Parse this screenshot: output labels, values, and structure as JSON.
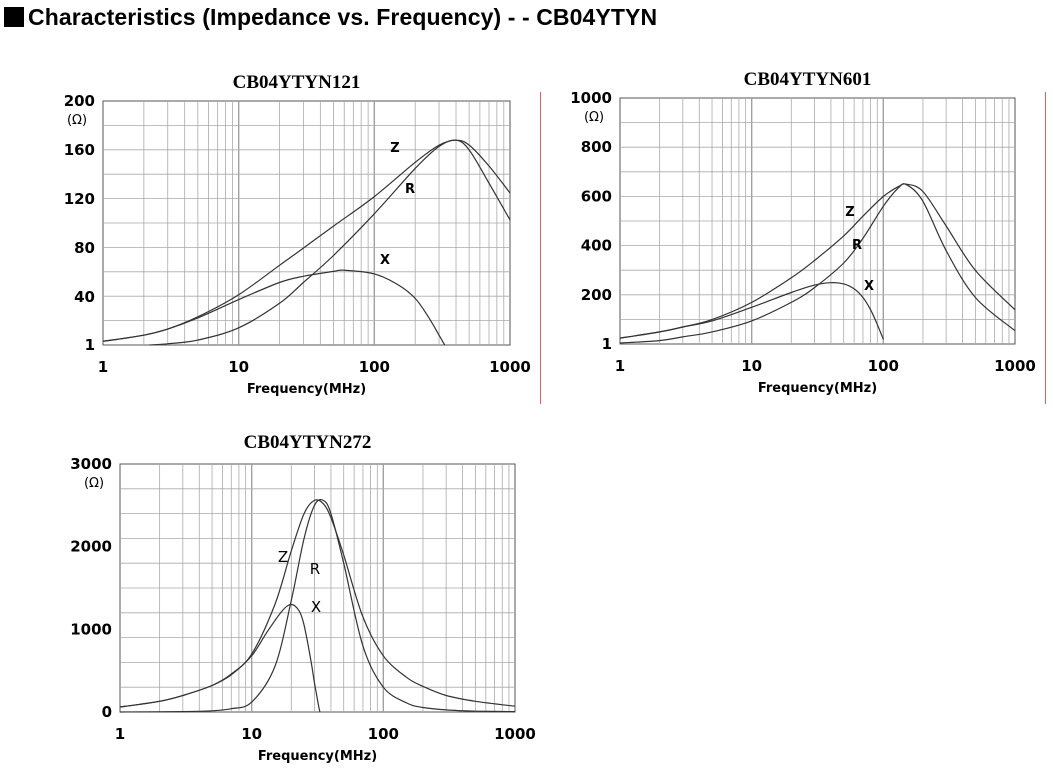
{
  "page": {
    "title": "Characteristics (Impedance vs. Frequency) - - CB04YTYN"
  },
  "chart_data": [
    {
      "type": "line",
      "title": "CB04YTYN121",
      "xlabel": "Frequency(MHz)",
      "ylabel": "",
      "yunit": "(Ω)",
      "xscale": "log",
      "xlim": [
        1,
        1000
      ],
      "ylim": [
        1,
        200
      ],
      "xticks": [
        "1",
        "10",
        "100",
        "1000"
      ],
      "yticks": [
        1,
        40,
        80,
        120,
        160,
        200
      ],
      "grid": true,
      "series": [
        {
          "name": "Z",
          "x": [
            1,
            2,
            3,
            5,
            10,
            20,
            30,
            50,
            100,
            200,
            300,
            400,
            500,
            700,
            1000
          ],
          "y": [
            4,
            9,
            14,
            24,
            42,
            66,
            80,
            98,
            122,
            150,
            164,
            168,
            164,
            147,
            125
          ]
        },
        {
          "name": "R",
          "x": [
            2.2,
            3,
            5,
            10,
            20,
            30,
            50,
            100,
            200,
            300,
            400,
            500,
            700,
            1000
          ],
          "y": [
            1,
            2,
            5,
            15,
            35,
            52,
            74,
            108,
            145,
            163,
            168,
            160,
            133,
            103
          ]
        },
        {
          "name": "X",
          "x": [
            1,
            2,
            3,
            5,
            10,
            20,
            30,
            50,
            60,
            100,
            150,
            200,
            250,
            300,
            330
          ],
          "y": [
            4,
            9,
            14,
            23,
            38,
            52,
            57,
            61,
            62,
            59,
            50,
            39,
            24,
            9,
            1
          ]
        }
      ]
    },
    {
      "type": "line",
      "title": "CB04YTYN601",
      "xlabel": "Frequency(MHz)",
      "ylabel": "",
      "yunit": "(Ω)",
      "xscale": "log",
      "xlim": [
        1,
        1000
      ],
      "ylim": [
        1,
        1000
      ],
      "xticks": [
        "1",
        "10",
        "100",
        "1000"
      ],
      "yticks": [
        1,
        200,
        400,
        600,
        800,
        1000
      ],
      "grid": true,
      "series": [
        {
          "name": "Z",
          "x": [
            1,
            2,
            3,
            5,
            10,
            20,
            30,
            50,
            70,
            100,
            130,
            150,
            200,
            300,
            500,
            1000
          ],
          "y": [
            25,
            50,
            70,
            100,
            170,
            270,
            340,
            440,
            520,
            600,
            640,
            650,
            620,
            480,
            300,
            140
          ]
        },
        {
          "name": "R",
          "x": [
            1,
            2,
            3,
            5,
            10,
            20,
            30,
            50,
            70,
            100,
            130,
            150,
            200,
            300,
            500,
            1000
          ],
          "y": [
            5,
            15,
            30,
            50,
            95,
            170,
            230,
            330,
            430,
            560,
            635,
            648,
            580,
            380,
            190,
            55
          ]
        },
        {
          "name": "X",
          "x": [
            1,
            2,
            3,
            5,
            10,
            20,
            30,
            40,
            50,
            60,
            70,
            80,
            90,
            100
          ],
          "y": [
            25,
            50,
            70,
            95,
            150,
            210,
            240,
            250,
            245,
            225,
            190,
            140,
            80,
            20
          ]
        }
      ]
    },
    {
      "type": "line",
      "title": "CB04YTYN272",
      "xlabel": "Frequency(MHz)",
      "ylabel": "",
      "yunit": "(Ω)",
      "xscale": "log",
      "xlim": [
        1,
        1000
      ],
      "ylim": [
        0,
        3000
      ],
      "xticks": [
        "1",
        "10",
        "100",
        "1000"
      ],
      "yticks": [
        0,
        1000,
        2000,
        3000
      ],
      "grid": true,
      "series": [
        {
          "name": "Z",
          "x": [
            1,
            2,
            3,
            5,
            7,
            10,
            15,
            20,
            25,
            30,
            35,
            40,
            50,
            70,
            100,
            150,
            200,
            300,
            500,
            1000
          ],
          "y": [
            60,
            130,
            200,
            320,
            460,
            700,
            1300,
            1950,
            2400,
            2560,
            2520,
            2350,
            1900,
            1150,
            680,
            420,
            310,
            200,
            130,
            70
          ]
        },
        {
          "name": "R",
          "x": [
            1,
            3,
            5,
            7,
            10,
            15,
            20,
            25,
            30,
            35,
            40,
            50,
            70,
            100,
            150,
            200,
            300,
            500,
            1000
          ],
          "y": [
            0,
            5,
            15,
            40,
            120,
            550,
            1350,
            2100,
            2500,
            2560,
            2400,
            1800,
            800,
            300,
            110,
            55,
            25,
            10,
            5
          ]
        },
        {
          "name": "X",
          "x": [
            1,
            2,
            3,
            5,
            7,
            10,
            13,
            17,
            20,
            23,
            25,
            28,
            30,
            32,
            33
          ],
          "y": [
            60,
            130,
            200,
            320,
            450,
            680,
            960,
            1220,
            1300,
            1220,
            1050,
            650,
            350,
            100,
            0
          ]
        }
      ]
    }
  ]
}
